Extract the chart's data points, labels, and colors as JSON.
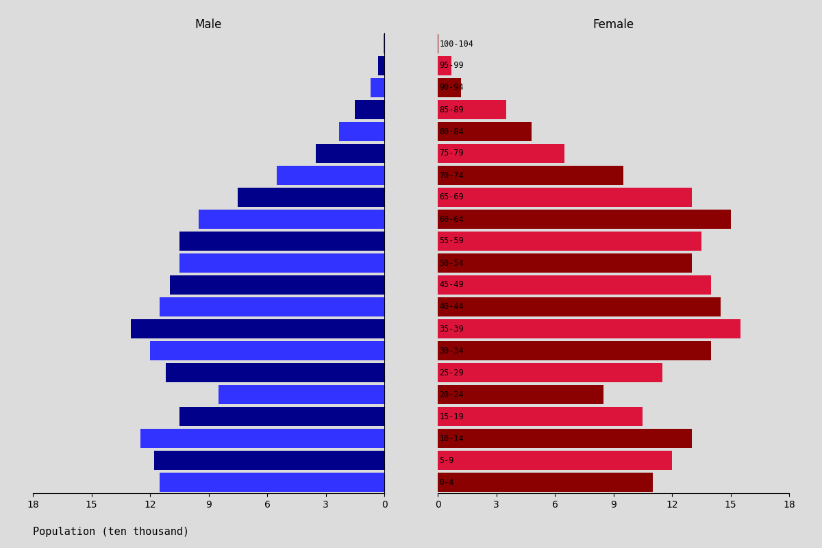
{
  "age_groups": [
    "0-4",
    "5-9",
    "10-14",
    "15-19",
    "20-24",
    "25-29",
    "30-34",
    "35-39",
    "40-44",
    "45-49",
    "50-54",
    "55-59",
    "60-64",
    "65-69",
    "70-74",
    "75-79",
    "80-84",
    "85-89",
    "90-94",
    "95-99",
    "100-104"
  ],
  "male": [
    11.5,
    11.8,
    12.5,
    10.5,
    8.5,
    11.2,
    12.0,
    13.0,
    11.5,
    11.0,
    10.5,
    10.5,
    9.5,
    7.5,
    5.5,
    3.5,
    2.3,
    1.5,
    0.7,
    0.3,
    0.05
  ],
  "female": [
    11.0,
    12.0,
    13.0,
    10.5,
    8.5,
    11.5,
    14.0,
    15.5,
    14.5,
    14.0,
    13.0,
    13.5,
    15.0,
    13.0,
    9.5,
    6.5,
    4.8,
    3.5,
    1.2,
    0.7,
    0.05
  ],
  "male_colors": [
    "#3333FF",
    "#00008B",
    "#3333FF",
    "#00008B",
    "#3333FF",
    "#00008B",
    "#3333FF",
    "#00008B",
    "#3333FF",
    "#00008B",
    "#3333FF",
    "#00008B",
    "#3333FF",
    "#00008B",
    "#3333FF",
    "#00008B",
    "#3333FF",
    "#00008B",
    "#3333FF",
    "#00008B",
    "#3333FF"
  ],
  "female_colors": [
    "#8B0000",
    "#DC143C",
    "#8B0000",
    "#DC143C",
    "#8B0000",
    "#DC143C",
    "#8B0000",
    "#DC143C",
    "#8B0000",
    "#DC143C",
    "#8B0000",
    "#DC143C",
    "#8B0000",
    "#DC143C",
    "#8B0000",
    "#DC143C",
    "#8B0000",
    "#DC143C",
    "#8B0000",
    "#DC143C",
    "#8B0000"
  ],
  "title_male": "Male",
  "title_female": "Female",
  "xlabel": "Population (ten thousand)",
  "xlim": 18,
  "xticks": [
    0,
    3,
    6,
    9,
    12,
    15,
    18
  ],
  "background_color": "#dcdcdc",
  "tick_fontsize": 10,
  "label_fontsize": 11,
  "bar_height": 0.85
}
